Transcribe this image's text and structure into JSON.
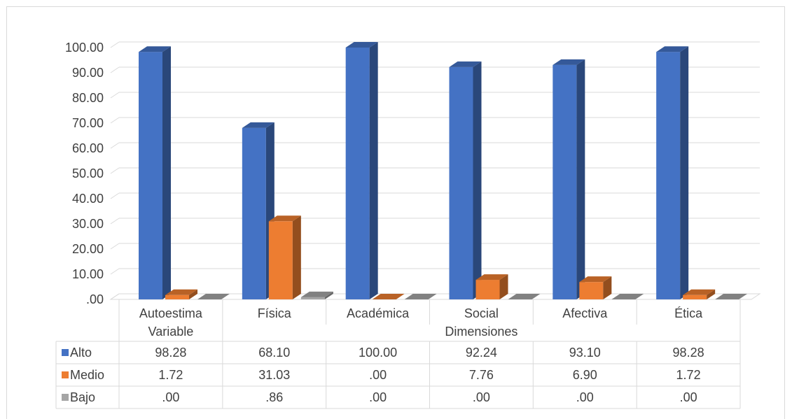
{
  "chart_data": {
    "type": "bar",
    "categories": [
      "Autoestima",
      "Física",
      "Académica",
      "Social",
      "Afectiva",
      "Ética"
    ],
    "category_groups": [
      {
        "label": "Variable",
        "span": [
          0,
          0
        ]
      },
      {
        "label": "Dimensiones",
        "span": [
          1,
          5
        ]
      }
    ],
    "series": [
      {
        "name": "Alto",
        "values": [
          98.28,
          68.1,
          100.0,
          92.24,
          93.1,
          98.28
        ],
        "color": "#4472c4",
        "labels": [
          "98.28",
          "68.10",
          "100.00",
          "92.24",
          "93.10",
          "98.28"
        ]
      },
      {
        "name": "Medio",
        "values": [
          1.72,
          31.03,
          0.0,
          7.76,
          6.9,
          1.72
        ],
        "color": "#ed7d31",
        "labels": [
          "1.72",
          "31.03",
          ".00",
          "7.76",
          "6.90",
          "1.72"
        ]
      },
      {
        "name": "Bajo",
        "values": [
          0.0,
          0.86,
          0.0,
          0.0,
          0.0,
          0.0
        ],
        "color": "#a5a5a5",
        "labels": [
          ".00",
          ".86",
          ".00",
          ".00",
          ".00",
          ".00"
        ]
      }
    ],
    "ylim": [
      0,
      100
    ],
    "yticks": [
      ".00",
      "10.00",
      "20.00",
      "30.00",
      "40.00",
      "50.00",
      "60.00",
      "70.00",
      "80.00",
      "90.00",
      "100.00"
    ],
    "grid": true,
    "style": "3d-clustered-column",
    "legend": "data-table-keys"
  }
}
